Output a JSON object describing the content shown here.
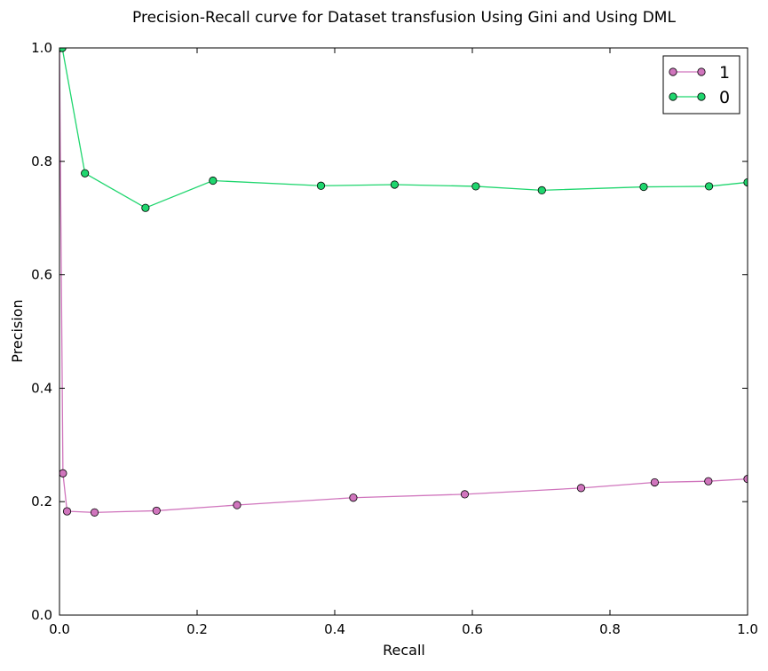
{
  "chart_data": {
    "type": "line",
    "title": "Precision-Recall curve for Dataset transfusion Using Gini and Using DML",
    "xlabel": "Recall",
    "ylabel": "Precision",
    "xlim": [
      0.0,
      1.0
    ],
    "ylim": [
      0.0,
      1.0
    ],
    "xticks": [
      "0.0",
      "0.2",
      "0.4",
      "0.6",
      "0.8",
      "1.0"
    ],
    "yticks": [
      "0.0",
      "0.2",
      "0.4",
      "0.6",
      "0.8",
      "1.0"
    ],
    "grid": false,
    "legend_position": "top-right",
    "series": [
      {
        "name": "1",
        "color": "#d075bd",
        "x": [
          0.0,
          0.005,
          0.011,
          0.051,
          0.141,
          0.258,
          0.427,
          0.589,
          0.758,
          0.865,
          0.943,
          1.0
        ],
        "y": [
          1.0,
          0.25,
          0.183,
          0.181,
          0.184,
          0.194,
          0.207,
          0.213,
          0.224,
          0.234,
          0.236,
          0.24
        ]
      },
      {
        "name": "0",
        "color": "#1fd66e",
        "x": [
          0.0,
          0.004,
          0.037,
          0.125,
          0.223,
          0.38,
          0.487,
          0.605,
          0.701,
          0.849,
          0.944,
          1.0
        ],
        "y": [
          1.0,
          1.0,
          0.779,
          0.718,
          0.766,
          0.757,
          0.759,
          0.756,
          0.749,
          0.755,
          0.756,
          0.763
        ]
      }
    ]
  }
}
